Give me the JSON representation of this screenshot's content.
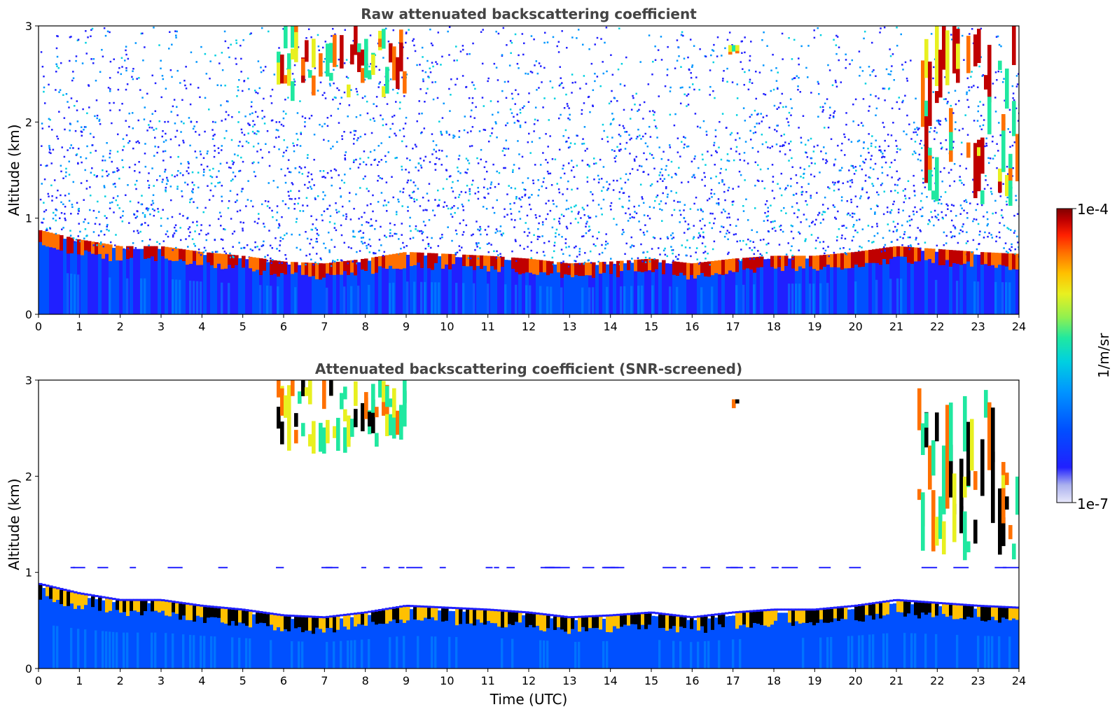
{
  "chart_data": [
    {
      "type": "heatmap",
      "title": "Raw attenuated backscattering coefficient",
      "xlabel": "",
      "ylabel": "Altitude (km)",
      "xlim": [
        0,
        24
      ],
      "ylim": [
        0,
        3
      ],
      "x_ticks": [
        "0",
        "1",
        "2",
        "3",
        "4",
        "5",
        "6",
        "7",
        "8",
        "9",
        "10",
        "11",
        "12",
        "13",
        "14",
        "15",
        "16",
        "17",
        "18",
        "19",
        "20",
        "21",
        "22",
        "23",
        "24"
      ],
      "y_ticks": [
        "0",
        "1",
        "2",
        "3"
      ],
      "features": {
        "boundary_layer_top_km": [
          [
            0,
            0.85
          ],
          [
            1,
            0.75
          ],
          [
            2,
            0.68
          ],
          [
            3,
            0.68
          ],
          [
            4,
            0.62
          ],
          [
            5,
            0.58
          ],
          [
            6,
            0.52
          ],
          [
            7,
            0.5
          ],
          [
            8,
            0.55
          ],
          [
            9,
            0.62
          ],
          [
            10,
            0.6
          ],
          [
            11,
            0.58
          ],
          [
            12,
            0.55
          ],
          [
            13,
            0.5
          ],
          [
            14,
            0.52
          ],
          [
            15,
            0.55
          ],
          [
            16,
            0.5
          ],
          [
            17,
            0.55
          ],
          [
            18,
            0.58
          ],
          [
            19,
            0.58
          ],
          [
            20,
            0.62
          ],
          [
            21,
            0.68
          ],
          [
            22,
            0.65
          ],
          [
            23,
            0.62
          ],
          [
            24,
            0.6
          ]
        ],
        "cloud_patches": [
          {
            "t_start": 5.8,
            "t_end": 9.0,
            "alt_km_min": 2.2,
            "alt_km_max": 3.0
          },
          {
            "t_start": 16.9,
            "t_end": 17.1,
            "alt_km_min": 2.7,
            "alt_km_max": 2.8
          },
          {
            "t_start": 21.5,
            "t_end": 24.0,
            "alt_km_min": 1.1,
            "alt_km_max": 3.0
          }
        ]
      }
    },
    {
      "type": "heatmap",
      "title": "Attenuated backscattering coefficient (SNR-screened)",
      "xlabel": "Time (UTC)",
      "ylabel": "Altitude (km)",
      "xlim": [
        0,
        24
      ],
      "ylim": [
        0,
        3
      ],
      "x_ticks": [
        "0",
        "1",
        "2",
        "3",
        "4",
        "5",
        "6",
        "7",
        "8",
        "9",
        "10",
        "11",
        "12",
        "13",
        "14",
        "15",
        "16",
        "17",
        "18",
        "19",
        "20",
        "21",
        "22",
        "23",
        "24"
      ],
      "y_ticks": [
        "0",
        "1",
        "2",
        "3"
      ],
      "features": {
        "screened": true,
        "spurious_layer_km": 1.05
      }
    }
  ],
  "colorbar": {
    "label": "1/m/sr",
    "min_label": "1e-7",
    "max_label": "1e-4",
    "scale": "log",
    "colors": [
      "#e8e8fa",
      "#aab0ee",
      "#2020ff",
      "#0050ff",
      "#0096ff",
      "#00d0e0",
      "#20e8a0",
      "#90f050",
      "#e8f020",
      "#ffc000",
      "#ff7000",
      "#ff2000",
      "#c00000",
      "#800000"
    ]
  }
}
